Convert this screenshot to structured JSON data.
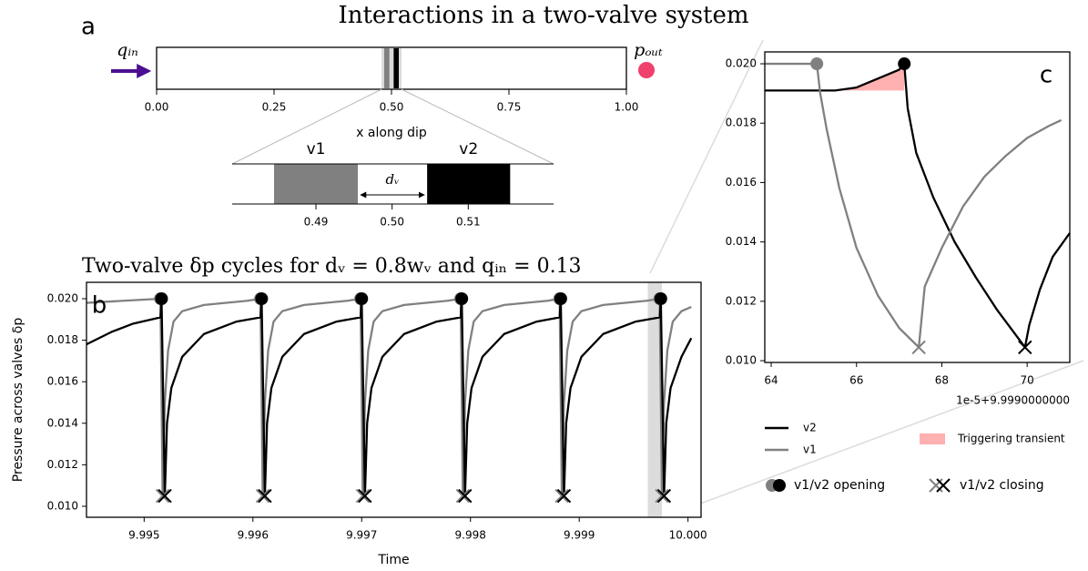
{
  "title": "Interactions in a two-valve system",
  "chart_data": [
    {
      "type": "diagram",
      "label": "a",
      "xlim": [
        0,
        1
      ],
      "xticks": [
        {
          "value": 0,
          "label": "0.00"
        },
        {
          "value": 0.25,
          "label": "0.25"
        },
        {
          "value": 0.5,
          "label": "0.50"
        },
        {
          "value": 0.75,
          "label": "0.75"
        },
        {
          "value": 1,
          "label": "1.00"
        }
      ],
      "xlabel": "x along dip",
      "zoom_xlim": [
        0.479,
        0.5212
      ],
      "zoom_xticks": [
        0.49,
        {
          "value": 0.5,
          "label": "0.50"
        },
        0.51
      ],
      "valves": [
        {
          "name": "v1",
          "color": "#808080",
          "x": [
            0.4845,
            0.4955
          ]
        },
        {
          "name": "v2",
          "color": "#000000",
          "x": [
            0.5046,
            0.5155
          ]
        }
      ],
      "spacing_label": "dᵥ",
      "inflow_label": "qᵢₙ",
      "inflow_color": "#4b0f91",
      "outflow_label": "pₒᵤₜ",
      "outflow_color": "#f0406c"
    },
    {
      "type": "line",
      "label": "b",
      "title": "Two-valve δp cycles for dᵥ = 0.8wᵥ and qᵢₙ = 0.13",
      "xlabel": "Time",
      "ylabel": "Pressure across valves δp",
      "xlim": [
        9.99447,
        10.00012
      ],
      "ylim": [
        0.00947,
        0.02079
      ],
      "xticks": [
        9.995,
        9.996,
        9.997,
        9.998,
        9.999,
        {
          "value": 10,
          "label": "10.000"
        }
      ],
      "yticks": [
        {
          "value": 0.01,
          "label": "0.010"
        },
        {
          "value": 0.012,
          "label": "0.012"
        },
        {
          "value": 0.014,
          "label": "0.014"
        },
        {
          "value": 0.016,
          "label": "0.016"
        },
        {
          "value": 0.018,
          "label": "0.018"
        },
        {
          "value": 0.02,
          "label": "0.020"
        }
      ],
      "highlight": [
        9.99963,
        9.99976
      ],
      "series": [
        {
          "color": "#808080",
          "x": [
            9.99447,
            9.99515,
            9.99517,
            9.99519,
            9.99522,
            9.99527,
            9.99535,
            9.99555,
            9.99595,
            9.99607,
            9.99609,
            9.99611,
            9.99614,
            9.99619,
            9.99627,
            9.99647,
            9.99687,
            9.99699,
            9.99701,
            9.99703,
            9.99706,
            9.99711,
            9.99719,
            9.99739,
            9.99779,
            9.99791,
            9.99793,
            9.99795,
            9.99798,
            9.99803,
            9.99811,
            9.99831,
            9.99871,
            9.99882,
            9.99884,
            9.99886,
            9.99889,
            9.99894,
            9.99902,
            9.99922,
            9.99962,
            9.99974,
            9.99976,
            9.99978,
            9.99981,
            9.99986,
            9.99994,
            10.00003
          ],
          "values": [
            0.0198,
            0.02,
            0.0105,
            0.015,
            0.0175,
            0.0189,
            0.0194,
            0.0197,
            0.0199,
            0.02,
            0.0105,
            0.015,
            0.0175,
            0.0189,
            0.0194,
            0.0197,
            0.0199,
            0.02,
            0.0105,
            0.015,
            0.0175,
            0.0189,
            0.0194,
            0.0197,
            0.0199,
            0.02,
            0.0105,
            0.015,
            0.0175,
            0.0189,
            0.0194,
            0.0197,
            0.0199,
            0.02,
            0.0105,
            0.015,
            0.0175,
            0.0189,
            0.0194,
            0.0197,
            0.0199,
            0.02,
            0.0105,
            0.015,
            0.0175,
            0.0189,
            0.0194,
            0.0196
          ]
        },
        {
          "color": "#000000",
          "x": [
            9.99447,
            9.9947,
            9.9949,
            9.99515,
            9.99516,
            9.99519,
            9.99521,
            9.99525,
            9.99535,
            9.99555,
            9.99585,
            9.99607,
            9.99608,
            9.99611,
            9.99613,
            9.99617,
            9.99627,
            9.99647,
            9.99677,
            9.99699,
            9.997,
            9.99703,
            9.99705,
            9.99709,
            9.99719,
            9.99739,
            9.99769,
            9.99791,
            9.99792,
            9.99795,
            9.99797,
            9.99801,
            9.99811,
            9.99831,
            9.99861,
            9.99882,
            9.99883,
            9.99886,
            9.99888,
            9.99892,
            9.99902,
            9.99922,
            9.99952,
            9.99974,
            9.99975,
            9.99978,
            9.9998,
            9.99984,
            9.99994,
            10.00003
          ],
          "values": [
            0.0178,
            0.0184,
            0.0188,
            0.0191,
            0.02,
            0.0105,
            0.014,
            0.0157,
            0.0172,
            0.0183,
            0.0189,
            0.0191,
            0.02,
            0.0105,
            0.014,
            0.0157,
            0.0172,
            0.0183,
            0.0189,
            0.0191,
            0.02,
            0.0105,
            0.014,
            0.0157,
            0.0172,
            0.0183,
            0.0189,
            0.0191,
            0.02,
            0.0105,
            0.014,
            0.0157,
            0.0172,
            0.0183,
            0.0189,
            0.0191,
            0.02,
            0.0105,
            0.014,
            0.0157,
            0.0172,
            0.0183,
            0.0189,
            0.0191,
            0.02,
            0.0105,
            0.014,
            0.0157,
            0.0172,
            0.0181
          ]
        }
      ]
    },
    {
      "type": "line",
      "label": "c",
      "xlim": [
        63.85,
        71.0
      ],
      "ylim": [
        0.00994,
        0.0204
      ],
      "xticks": [
        64,
        66,
        68,
        70
      ],
      "yticks": [
        {
          "value": 0.01,
          "label": "0.010"
        },
        {
          "value": 0.012,
          "label": "0.012"
        },
        {
          "value": 0.014,
          "label": "0.014"
        },
        {
          "value": 0.016,
          "label": "0.016"
        },
        {
          "value": 0.018,
          "label": "0.018"
        },
        {
          "value": 0.02,
          "label": "0.020"
        }
      ],
      "x_offset_label": "1e-5+9.9990000000",
      "transient": {
        "name": "Triggering transient",
        "color": "#ffb0b0",
        "x": [
          65.5,
          66.0,
          66.5,
          67.0,
          67.12
        ],
        "upper": [
          0.0191,
          0.0192,
          0.0195,
          0.0198,
          0.02
        ],
        "lower": 0.0191
      },
      "series": [
        {
          "name": "v2",
          "color": "#000000",
          "x": [
            63.85,
            65.5,
            66.0,
            66.5,
            67.0,
            67.12,
            67.2,
            67.4,
            67.8,
            68.3,
            68.8,
            69.3,
            69.95,
            70.05,
            70.3,
            70.6,
            71.0
          ],
          "values": [
            0.0191,
            0.0191,
            0.0192,
            0.0195,
            0.0198,
            0.02,
            0.0185,
            0.017,
            0.0155,
            0.014,
            0.0128,
            0.0117,
            0.01045,
            0.0112,
            0.0124,
            0.0135,
            0.0143
          ]
        },
        {
          "name": "v1",
          "color": "#808080",
          "x": [
            63.85,
            65.07,
            65.15,
            65.3,
            65.6,
            66.0,
            66.5,
            67.0,
            67.46,
            67.6,
            68.0,
            68.5,
            69.0,
            69.5,
            70.0,
            70.5,
            70.8
          ],
          "values": [
            0.02,
            0.02,
            0.019,
            0.0178,
            0.0158,
            0.0138,
            0.0122,
            0.0111,
            0.01045,
            0.0125,
            0.0138,
            0.0152,
            0.0162,
            0.0169,
            0.0175,
            0.0179,
            0.0181
          ]
        }
      ],
      "marker_labels": {
        "opening": "v1/v2 opening",
        "closing": "v1/v2 closing"
      }
    }
  ]
}
